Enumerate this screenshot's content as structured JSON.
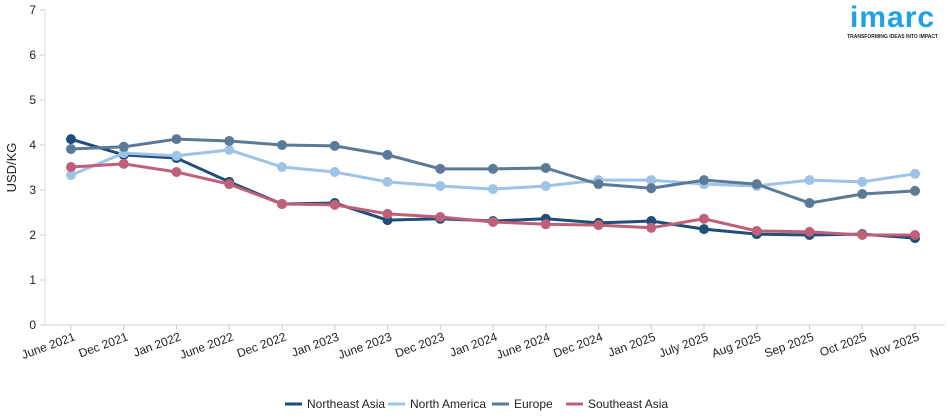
{
  "logo": {
    "name": "imarc",
    "tagline": "TRANSFORMING IDEAS INTO IMPACT"
  },
  "chart_data": {
    "type": "line",
    "title": "",
    "xlabel": "",
    "ylabel": "USD/KG",
    "ylim": [
      0,
      7
    ],
    "yticks": [
      0,
      1,
      2,
      3,
      4,
      5,
      6,
      7
    ],
    "grid": false,
    "legend_position": "bottom",
    "categories": [
      "June 2021",
      "Dec 2021",
      "Jan 2022",
      "June 2022",
      "Dec 2022",
      "Jan 2023",
      "June 2023",
      "Dec 2023",
      "Jan 2024",
      "June 2024",
      "Dec 2024",
      "Jan 2025",
      "July 2025",
      "Aug 2025",
      "Sep 2025",
      "Oct 2025",
      "Nov 2025"
    ],
    "series": [
      {
        "name": "Northeast Asia",
        "color": "#1f4e79",
        "values": [
          4.13,
          3.78,
          3.71,
          3.18,
          2.69,
          2.71,
          2.33,
          2.36,
          2.31,
          2.36,
          2.27,
          2.31,
          2.13,
          2.02,
          2.0,
          2.02,
          1.93
        ]
      },
      {
        "name": "North America",
        "color": "#9dc3e6",
        "values": [
          3.33,
          3.82,
          3.76,
          3.89,
          3.51,
          3.4,
          3.18,
          3.09,
          3.02,
          3.09,
          3.22,
          3.22,
          3.13,
          3.09,
          3.22,
          3.18,
          3.36
        ]
      },
      {
        "name": "Europe",
        "color": "#5a7a96",
        "values": [
          3.91,
          3.96,
          4.13,
          4.09,
          4.0,
          3.98,
          3.78,
          3.47,
          3.47,
          3.49,
          3.13,
          3.04,
          3.22,
          3.13,
          2.71,
          2.91,
          2.98
        ]
      },
      {
        "name": "Southeast Asia",
        "color": "#c06078",
        "values": [
          3.51,
          3.58,
          3.4,
          3.13,
          2.69,
          2.67,
          2.47,
          2.4,
          2.29,
          2.24,
          2.22,
          2.16,
          2.36,
          2.09,
          2.07,
          2.0,
          2.0
        ]
      }
    ]
  }
}
